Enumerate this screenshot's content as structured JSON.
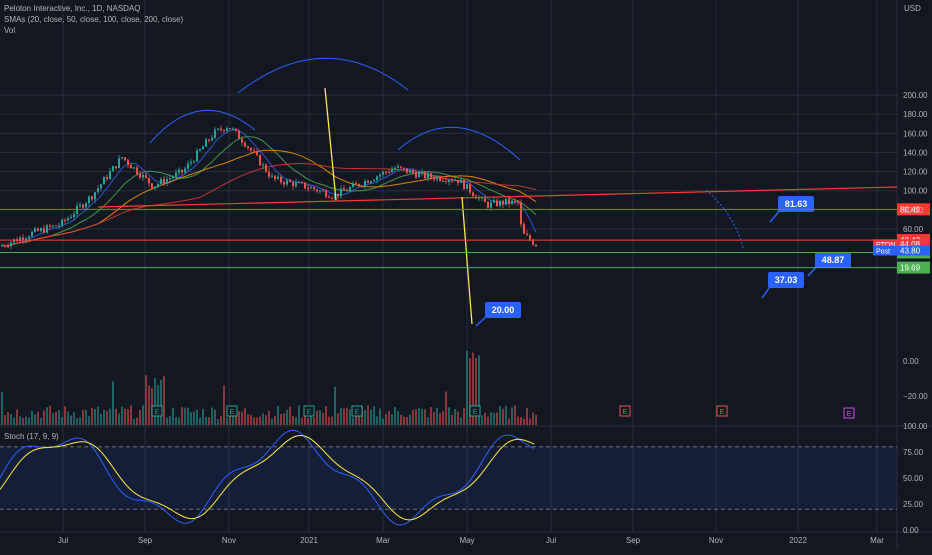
{
  "header": {
    "title": "Peloton Interactive, Inc., 1D, NASDAQ",
    "sma_label": "SMAs (20, close, 50, close, 100, close, 200, close)",
    "vol_label": "Vol",
    "currency": "USD"
  },
  "colors": {
    "background": "#131722",
    "grid": "#2a2e39",
    "up": "#26a69a",
    "down": "#ef5350",
    "sma20": "#2962ff",
    "sma50": "#4caf50",
    "sma100": "#ff9800",
    "sma200": "#e53935",
    "stoch_k": "#2962ff",
    "stoch_d": "#ffeb3b",
    "horizontal_line": "#ff3b30",
    "support_line": "#4caf50",
    "neckline": "#ff3b30",
    "drop_line": "#ffeb3b",
    "arc": "#2962ff",
    "callout": "#2962ff"
  },
  "chart_data": [
    {
      "type": "candlestick",
      "price_axis_ticks": [
        "200.00",
        "180.00",
        "160.00",
        "140.00",
        "120.00",
        "100.00",
        "80.00",
        "60.00"
      ],
      "price_ylim": [
        20,
        205
      ],
      "time_axis_labels": [
        "Jul",
        "Sep",
        "Nov",
        "2021",
        "Mar",
        "May",
        "Jul",
        "Sep",
        "Nov",
        "2022",
        "Mar"
      ],
      "series_close_approx": [
        [
          "2020-06-01",
          42
        ],
        [
          "2020-07-01",
          55
        ],
        [
          "2020-08-01",
          65
        ],
        [
          "2020-09-01",
          95
        ],
        [
          "2020-10-01",
          135
        ],
        [
          "2020-11-01",
          105
        ],
        [
          "2020-12-01",
          120
        ],
        [
          "2021-01-01",
          160
        ],
        [
          "2021-01-15",
          168
        ],
        [
          "2021-02-01",
          150
        ],
        [
          "2021-03-01",
          112
        ],
        [
          "2021-04-01",
          105
        ],
        [
          "2021-05-01",
          95
        ],
        [
          "2021-06-01",
          110
        ],
        [
          "2021-07-01",
          124
        ],
        [
          "2021-08-01",
          115
        ],
        [
          "2021-09-01",
          112
        ],
        [
          "2021-10-01",
          85
        ],
        [
          "2021-10-20",
          88
        ],
        [
          "2021-11-01",
          87
        ],
        [
          "2021-11-05",
          55
        ],
        [
          "2021-11-19",
          44
        ]
      ],
      "horizontal_levels": [
        {
          "label": "80.49",
          "value": 80.49,
          "color": "#ff3b30"
        },
        {
          "label": "48.43",
          "value": 48.43,
          "color": "#ff3b30"
        },
        {
          "label": "35.48",
          "value": 35.48,
          "color": "#4caf50"
        },
        {
          "label": "19.69",
          "value": 19.69,
          "color": "#4caf50"
        }
      ],
      "price_tags": [
        {
          "label": "PTON",
          "value": "44.08",
          "color": "#f23645"
        },
        {
          "label": "Post",
          "value": "43.80",
          "color": "#2962ff"
        }
      ],
      "callouts": [
        "81.63",
        "48.87",
        "37.03",
        "20.00"
      ],
      "annotations": [
        "head and shoulders arcs",
        "neckline",
        "measured move lines"
      ]
    },
    {
      "type": "bar",
      "name": "Volume",
      "axis_ticks": [
        "0.00",
        "−20.00"
      ],
      "earnings_markers": [
        "E",
        "E",
        "E",
        "E",
        "E",
        "E",
        "E"
      ]
    },
    {
      "type": "line",
      "title": "Stoch (17, 9, 9)",
      "axis_ticks": [
        "100.00",
        "75.00",
        "50.00",
        "25.00",
        "0.00"
      ],
      "ylim": [
        0,
        100
      ],
      "bands": [
        20,
        80
      ]
    }
  ]
}
